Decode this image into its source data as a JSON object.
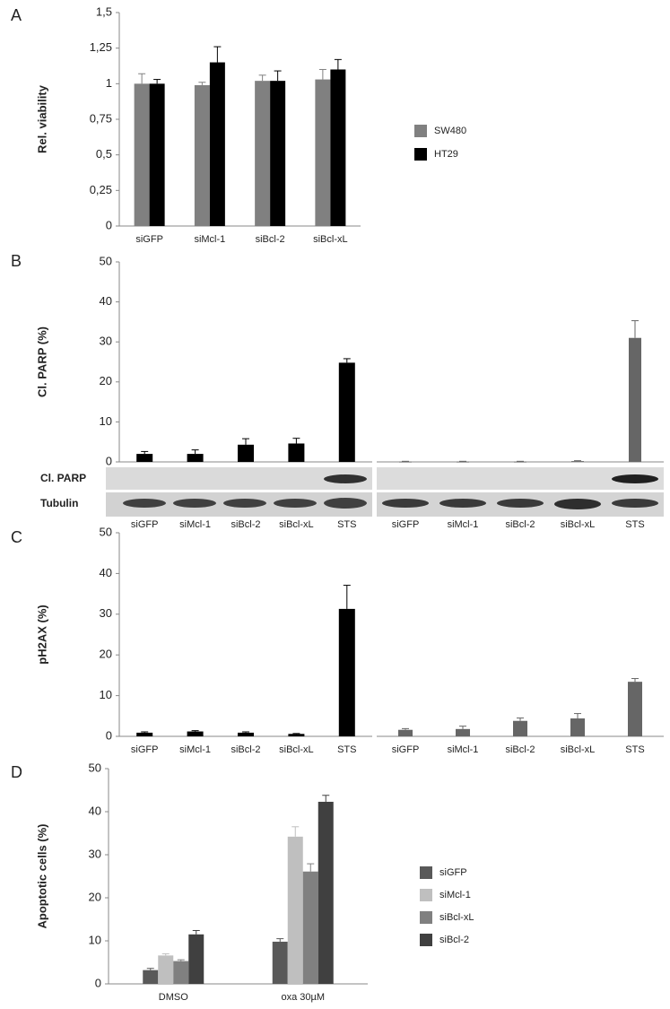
{
  "chart_data": [
    {
      "type": "bar",
      "panel": "A",
      "ylabel": "Rel. viability",
      "categories": [
        "siGFP",
        "siMcl-1",
        "siBcl-2",
        "siBcl-xL"
      ],
      "series": [
        {
          "name": "SW480",
          "color": "#808080",
          "values": [
            1.0,
            0.99,
            1.02,
            1.03
          ],
          "errors": [
            0.07,
            0.02,
            0.04,
            0.07
          ]
        },
        {
          "name": "HT29",
          "color": "#000000",
          "values": [
            1.0,
            1.15,
            1.02,
            1.1
          ],
          "errors": [
            0.03,
            0.11,
            0.07,
            0.07
          ]
        }
      ],
      "ylim": [
        0,
        1.5
      ],
      "yticks": [
        0,
        {
          "value": 0.25,
          "label": "0,25"
        },
        {
          "value": 0.5,
          "label": "0,5"
        },
        {
          "value": 0.75,
          "label": "0,75"
        },
        1,
        {
          "value": 1.25,
          "label": "1,25"
        },
        {
          "value": 1.5,
          "label": "1,5"
        }
      ],
      "legend": "right"
    },
    {
      "type": "bar",
      "panel": "B",
      "ylabel": "Cl. PARP (%)",
      "blot_labels": [
        "Cl. PARP",
        "Tubulin"
      ],
      "categories": [
        "siGFP",
        "siMcl-1",
        "siBcl-2",
        "siBcl-xL",
        "STS"
      ],
      "series": [
        {
          "color": "#000000",
          "values": [
            2.0,
            2.0,
            4.3,
            4.6,
            24.8
          ],
          "errors": [
            0.6,
            1.0,
            1.5,
            1.3,
            1.0
          ]
        }
      ],
      "ylim": [
        0,
        50
      ],
      "yticks": [
        0,
        10,
        20,
        30,
        40,
        50
      ]
    },
    {
      "type": "bar",
      "categories": [
        "siGFP",
        "siMcl-1",
        "siBcl-2",
        "siBcl-xL",
        "STS"
      ],
      "series": [
        {
          "color": "#666666",
          "values": [
            0.05,
            0.05,
            0.05,
            0.2,
            31
          ],
          "errors": [
            0.1,
            0.1,
            0.1,
            0.1,
            4.3
          ]
        }
      ],
      "ylim": [
        0,
        50
      ]
    },
    {
      "type": "bar",
      "panel": "C",
      "ylabel": "pH2AX (%)",
      "categories": [
        "siGFP",
        "siMcl-1",
        "siBcl-2",
        "siBcl-xL",
        "STS"
      ],
      "series": [
        {
          "color": "#000000",
          "values": [
            0.9,
            1.2,
            0.9,
            0.6,
            31.3
          ],
          "errors": [
            0.2,
            0.2,
            0.2,
            0.1,
            5.8
          ]
        }
      ],
      "ylim": [
        0,
        50
      ],
      "yticks": [
        0,
        10,
        20,
        30,
        40,
        50
      ]
    },
    {
      "type": "bar",
      "categories": [
        "siGFP",
        "siMcl-1",
        "siBcl-2",
        "siBcl-xL",
        "STS"
      ],
      "series": [
        {
          "color": "#666666",
          "values": [
            1.6,
            1.8,
            3.8,
            4.4,
            13.4
          ],
          "errors": [
            0.3,
            0.7,
            0.7,
            1.2,
            0.8
          ]
        }
      ],
      "ylim": [
        0,
        50
      ]
    },
    {
      "type": "bar",
      "panel": "D",
      "ylabel": "Apoptotic cells (%)",
      "categories": [
        "DMSO",
        "oxa 30µM"
      ],
      "series": [
        {
          "name": "siGFP",
          "color": "#595959",
          "values": [
            3.2,
            9.8
          ],
          "errors": [
            0.4,
            0.7
          ]
        },
        {
          "name": "siMcl-1",
          "color": "#bfbfbf",
          "values": [
            6.6,
            34.2
          ],
          "errors": [
            0.4,
            2.3
          ]
        },
        {
          "name": "siBcl-xL",
          "color": "#808080",
          "values": [
            5.3,
            26.1
          ],
          "errors": [
            0.3,
            1.8
          ]
        },
        {
          "name": "siBcl-2",
          "color": "#404040",
          "values": [
            11.5,
            42.3
          ],
          "errors": [
            0.9,
            1.5
          ]
        }
      ],
      "ylim": [
        0,
        50
      ],
      "yticks": [
        0,
        10,
        20,
        30,
        40,
        50
      ],
      "legend": "right"
    }
  ]
}
